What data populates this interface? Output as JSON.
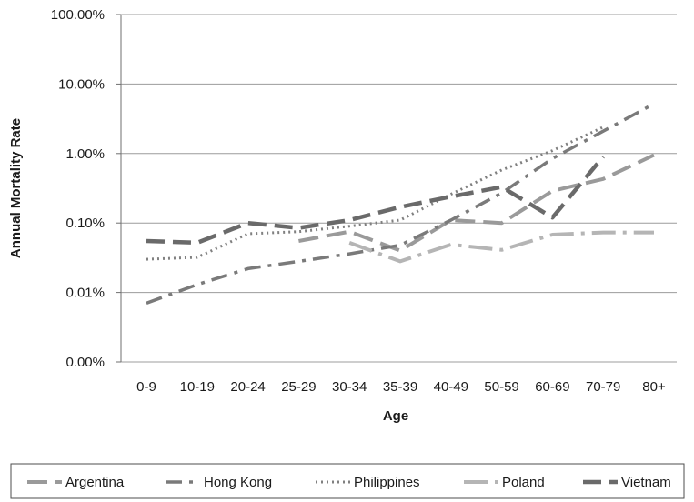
{
  "chart_data": {
    "type": "line",
    "xlabel": "Age",
    "ylabel": "Annual Mortality Rate",
    "y_scale": "log",
    "ylim": [
      0.001,
      100
    ],
    "grid": "horizontal",
    "legend_position": "bottom",
    "categories": [
      "0-9",
      "10-19",
      "20-24",
      "25-29",
      "30-34",
      "35-39",
      "40-49",
      "50-59",
      "60-69",
      "70-79",
      "80+"
    ],
    "y_tick_labels": [
      "0.00%",
      "0.01%",
      "0.10%",
      "1.00%",
      "10.00%",
      "100.00%"
    ],
    "y_tick_values": [
      0.001,
      0.01,
      0.1,
      1,
      10,
      100
    ],
    "series": [
      {
        "name": "Argentina",
        "color": "#9a9a9a",
        "dash": "long-dash",
        "values": [
          null,
          null,
          null,
          0.055,
          0.075,
          0.04,
          0.11,
          0.1,
          0.29,
          0.43,
          0.95
        ]
      },
      {
        "name": "Hong Kong",
        "color": "#7a7a7a",
        "dash": "dash-dot",
        "values": [
          0.007,
          0.013,
          0.022,
          0.028,
          0.036,
          0.048,
          0.11,
          0.27,
          0.85,
          2.1,
          5.2
        ]
      },
      {
        "name": "Philippines",
        "color": "#808080",
        "dash": "dotted",
        "values": [
          0.03,
          0.032,
          0.07,
          0.075,
          0.09,
          0.11,
          0.26,
          0.58,
          1.1,
          2.4,
          null
        ]
      },
      {
        "name": "Poland",
        "color": "#b5b5b5",
        "dash": "long-dash-dot",
        "values": [
          null,
          null,
          null,
          null,
          0.052,
          0.028,
          0.049,
          0.041,
          0.068,
          0.073,
          0.073
        ]
      },
      {
        "name": "Vietnam",
        "color": "#6a6a6a",
        "dash": "heavy-dash",
        "values": [
          0.055,
          0.052,
          0.1,
          0.085,
          0.11,
          0.17,
          0.24,
          0.33,
          0.12,
          0.9,
          null
        ]
      }
    ]
  }
}
